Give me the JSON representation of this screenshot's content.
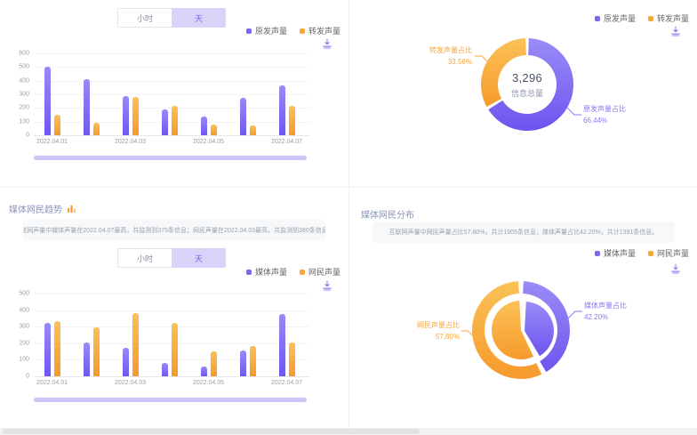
{
  "colors": {
    "purple": "#7b68f0",
    "orange": "#f9a53c",
    "toggle_selected_bg": "#d9d3fa",
    "scrollbar": "#cbc3f5"
  },
  "toggle": {
    "hour": "小时",
    "day": "天",
    "selected": "天"
  },
  "panels": {
    "trend_origin": {
      "legend": [
        {
          "label": "原发声量"
        },
        {
          "label": "转发声量"
        }
      ]
    },
    "share_origin": {
      "legend": [
        {
          "label": "原发声量"
        },
        {
          "label": "转发声量"
        }
      ],
      "center_value": "3,296",
      "center_label": "信息总量",
      "label_orange_line1": "转发声量占比",
      "label_orange_line2": "33.56%",
      "label_purple_line1": "原发声量占比",
      "label_purple_line2": "66.44%"
    },
    "trend_media": {
      "title": "媒体网民趋势",
      "description": "互联网声量中媒体声量在2022.04.07最高，共监测到375条信息；网民声量在2022.04.03最高，共监测到380条信息。",
      "legend": [
        {
          "label": "媒体声量"
        },
        {
          "label": "网民声量"
        }
      ]
    },
    "share_media": {
      "title": "媒体网民分布",
      "description": "互联网声量中网民声量占比57.80%，共计1905条信息；媒体声量占比42.20%，共计1391条信息。",
      "legend": [
        {
          "label": "媒体声量"
        },
        {
          "label": "网民声量"
        }
      ],
      "label_purple_line1": "媒体声量占比",
      "label_purple_line2": "42.20%",
      "label_orange_line1": "网民声量占比",
      "label_orange_line2": "57.80%"
    }
  },
  "chart_data": [
    {
      "id": "origin-repost-trend",
      "type": "bar",
      "categories": [
        "2022.04.01",
        "2022.04.02",
        "2022.04.03",
        "2022.04.04",
        "2022.04.05",
        "2022.04.06",
        "2022.04.07"
      ],
      "visible_xticks": [
        "2022.04.01",
        "2022.04.03",
        "2022.04.05",
        "2022.04.07"
      ],
      "series": [
        {
          "name": "原发声量",
          "color": "#7b68f0",
          "values": [
            505,
            410,
            285,
            190,
            135,
            275,
            365
          ]
        },
        {
          "name": "转发声量",
          "color": "#f9a53c",
          "values": [
            150,
            90,
            280,
            215,
            80,
            70,
            215
          ]
        }
      ],
      "ylim": [
        0,
        600
      ],
      "ytick_step": 100,
      "grid": true,
      "legend_position": "top-right"
    },
    {
      "id": "origin-repost-share",
      "type": "pie",
      "title": "",
      "center_value": "3,296",
      "center_label": "信息总量",
      "slices": [
        {
          "name": "原发声量占比",
          "pct": 66.44,
          "color": "#7b68f0"
        },
        {
          "name": "转发声量占比",
          "pct": 33.56,
          "color": "#f9a53c"
        }
      ]
    },
    {
      "id": "media-netizen-trend",
      "type": "bar",
      "categories": [
        "2022.04.01",
        "2022.04.02",
        "2022.04.03",
        "2022.04.04",
        "2022.04.05",
        "2022.04.06",
        "2022.04.07"
      ],
      "visible_xticks": [
        "2022.04.01",
        "2022.04.03",
        "2022.04.05",
        "2022.04.07"
      ],
      "series": [
        {
          "name": "媒体声量",
          "color": "#7b68f0",
          "values": [
            320,
            205,
            170,
            80,
            60,
            155,
            375
          ]
        },
        {
          "name": "网民声量",
          "color": "#f9a53c",
          "values": [
            335,
            295,
            380,
            325,
            150,
            185,
            205
          ]
        }
      ],
      "ylim": [
        0,
        500
      ],
      "ytick_step": 100,
      "grid": true,
      "legend_position": "top-right"
    },
    {
      "id": "media-netizen-share",
      "type": "pie",
      "slices": [
        {
          "name": "媒体声量占比",
          "pct": 42.2,
          "color": "#7b68f0"
        },
        {
          "name": "网民声量占比",
          "pct": 57.8,
          "color": "#f9a53c"
        }
      ]
    }
  ]
}
